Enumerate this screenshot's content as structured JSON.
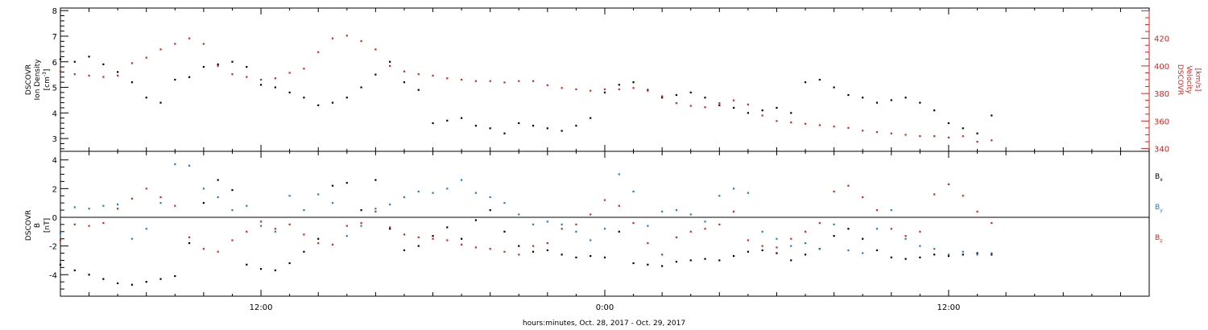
{
  "chart_data": [
    {
      "type": "scatter",
      "panel": "top",
      "ylabel_left": [
        "DSCOVR",
        "Ion Density",
        "[cm",
        "-3",
        "]"
      ],
      "ylabel_right": [
        "DSCOVR",
        "Velocity",
        "[km/s]"
      ],
      "ylim_left": [
        2.5,
        8.1
      ],
      "ylim_right": [
        338,
        442
      ],
      "left_ticks": [
        "3",
        "4",
        "5",
        "6",
        "7",
        "8"
      ],
      "right_ticks": [
        "340",
        "360",
        "380",
        "400",
        "420"
      ],
      "colors": {
        "density": "#000000",
        "velocity": "#e0201c"
      },
      "series": [
        {
          "name": "Ion Density",
          "axis": "left",
          "x": [
            5.0,
            5.5,
            6.0,
            6.5,
            7.0,
            7.5,
            8.0,
            8.5,
            9.0,
            9.5,
            10.0,
            10.5,
            11.0,
            11.5,
            12.0,
            12.5,
            13.0,
            13.5,
            14.0,
            14.5,
            15.0,
            15.5,
            16.0,
            16.5,
            17.0,
            17.5,
            18.0,
            18.5,
            19.0,
            19.5,
            20.0,
            20.5,
            21.0,
            21.5,
            22.0,
            22.5,
            23.0,
            23.5,
            24.0,
            24.5,
            25.0,
            25.5,
            26.0,
            26.5,
            27.0,
            27.5,
            28.0,
            28.5,
            29.0,
            29.5,
            30.0,
            30.5,
            31.0,
            31.5,
            32.0,
            32.5,
            33.0,
            33.5,
            34.0,
            34.5,
            35.0,
            35.5,
            36.0,
            36.5,
            37.0,
            37.5
          ],
          "y": [
            6.1,
            6.0,
            6.2,
            5.9,
            5.6,
            5.2,
            4.6,
            4.4,
            5.3,
            5.4,
            5.8,
            5.9,
            6.0,
            5.8,
            5.1,
            5.0,
            4.8,
            4.6,
            4.3,
            4.4,
            4.6,
            5.0,
            5.5,
            6.0,
            5.2,
            4.9,
            3.6,
            3.7,
            3.8,
            3.5,
            3.4,
            3.2,
            3.6,
            3.5,
            3.4,
            3.3,
            3.5,
            3.8,
            4.8,
            5.1,
            5.2,
            4.9,
            4.6,
            4.7,
            4.8,
            4.6,
            4.3,
            4.2,
            4.0,
            4.1,
            4.2,
            4.0,
            5.2,
            5.3,
            5.0,
            4.7,
            4.6,
            4.4,
            4.5,
            4.6,
            4.4,
            4.1,
            3.6,
            3.4,
            3.2,
            3.9
          ]
        },
        {
          "name": "Velocity",
          "axis": "right",
          "x": [
            5.0,
            5.5,
            6.0,
            6.5,
            7.0,
            7.5,
            8.0,
            8.5,
            9.0,
            9.5,
            10.0,
            10.5,
            11.0,
            11.5,
            12.0,
            12.5,
            13.0,
            13.5,
            14.0,
            14.5,
            15.0,
            15.5,
            16.0,
            16.5,
            17.0,
            17.5,
            18.0,
            18.5,
            19.0,
            19.5,
            20.0,
            20.5,
            21.0,
            21.5,
            22.0,
            22.5,
            23.0,
            23.5,
            24.0,
            24.5,
            25.0,
            25.5,
            26.0,
            26.5,
            27.0,
            27.5,
            28.0,
            28.5,
            29.0,
            29.5,
            30.0,
            30.5,
            31.0,
            31.5,
            32.0,
            32.5,
            33.0,
            33.5,
            34.0,
            34.5,
            35.0,
            35.5,
            36.0,
            36.5,
            37.0,
            37.5
          ],
          "y": [
            396,
            394,
            393,
            392,
            393,
            402,
            406,
            412,
            416,
            420,
            416,
            400,
            394,
            392,
            390,
            391,
            395,
            398,
            410,
            420,
            422,
            418,
            412,
            400,
            396,
            394,
            393,
            391,
            390,
            389,
            389,
            388,
            389,
            389,
            386,
            384,
            383,
            382,
            383,
            383,
            384,
            382,
            378,
            373,
            371,
            370,
            373,
            375,
            372,
            364,
            360,
            359,
            358,
            357,
            356,
            355,
            353,
            352,
            351,
            350,
            349,
            349,
            348,
            349,
            345,
            346
          ]
        }
      ]
    },
    {
      "type": "scatter",
      "panel": "bottom",
      "ylabel_left": [
        "DSCOVR",
        "B",
        "[nT]"
      ],
      "ylim": [
        -5.5,
        4.6
      ],
      "left_ticks": [
        "-4",
        "-2",
        "0",
        "2",
        "4"
      ],
      "legend": [
        {
          "name": "B",
          "sub": "x",
          "color": "#000000"
        },
        {
          "name": "B",
          "sub": "y",
          "color": "#1f7ccf"
        },
        {
          "name": "B",
          "sub": "z",
          "color": "#e0201c"
        }
      ],
      "colors": {
        "bx": "#000000",
        "by": "#1f7ccf",
        "bz": "#e0201c"
      },
      "series": [
        {
          "name": "Bx",
          "x": [
            5.0,
            5.5,
            6.0,
            6.5,
            7.0,
            7.5,
            8.0,
            8.5,
            9.0,
            9.5,
            10.0,
            10.5,
            11.0,
            11.5,
            12.0,
            12.5,
            13.0,
            13.5,
            14.0,
            14.5,
            15.0,
            15.5,
            16.0,
            16.5,
            17.0,
            17.5,
            18.0,
            18.5,
            19.0,
            19.5,
            20.0,
            20.5,
            21.0,
            21.5,
            22.0,
            22.5,
            23.0,
            23.5,
            24.0,
            24.5,
            25.0,
            25.5,
            26.0,
            26.5,
            27.0,
            27.5,
            28.0,
            28.5,
            29.0,
            29.5,
            30.0,
            30.5,
            31.0,
            31.5,
            32.0,
            32.5,
            33.0,
            33.5,
            34.0,
            34.5,
            35.0,
            35.5,
            36.0,
            36.5,
            37.0,
            37.5
          ],
          "y": [
            -3.3,
            -3.7,
            -4.0,
            -4.3,
            -4.6,
            -4.7,
            -4.5,
            -4.3,
            -4.1,
            -1.8,
            1.0,
            2.6,
            1.9,
            -3.3,
            -3.6,
            -3.7,
            -3.2,
            -2.4,
            -1.5,
            2.2,
            2.4,
            0.5,
            2.6,
            -0.8,
            -2.3,
            -2.0,
            -1.3,
            -0.7,
            -1.5,
            -0.2,
            0.5,
            -1.0,
            -2.0,
            -2.4,
            -2.3,
            -2.6,
            -2.8,
            -2.7,
            -2.8,
            -1.0,
            -3.2,
            -3.3,
            -3.4,
            -3.1,
            -3.0,
            -2.9,
            -3.0,
            -2.7,
            -2.4,
            -2.3,
            -2.5,
            -3.0,
            -2.6,
            -2.2,
            -1.3,
            -0.8,
            -1.5,
            -2.3,
            -2.8,
            -2.9,
            -2.8,
            -2.6,
            -2.7,
            -2.6,
            -2.5,
            -2.6
          ]
        },
        {
          "name": "By",
          "x": [
            5.0,
            5.5,
            6.0,
            6.5,
            7.0,
            7.5,
            8.0,
            8.5,
            9.0,
            9.5,
            10.0,
            10.5,
            11.0,
            11.5,
            12.0,
            12.5,
            13.0,
            13.5,
            14.0,
            14.5,
            15.0,
            15.5,
            16.0,
            16.5,
            17.0,
            17.5,
            18.0,
            18.5,
            19.0,
            19.5,
            20.0,
            20.5,
            21.0,
            21.5,
            22.0,
            22.5,
            23.0,
            23.5,
            24.0,
            24.5,
            25.0,
            25.5,
            26.0,
            26.5,
            27.0,
            27.5,
            28.0,
            28.5,
            29.0,
            29.5,
            30.0,
            30.5,
            31.0,
            31.5,
            32.0,
            32.5,
            33.0,
            33.5,
            34.0,
            34.5,
            35.0,
            35.5,
            36.0,
            36.5,
            37.0,
            37.5
          ],
          "y": [
            -1.1,
            0.7,
            0.6,
            0.8,
            0.9,
            -1.5,
            -0.8,
            1.0,
            3.7,
            3.6,
            2.0,
            1.4,
            0.5,
            0.8,
            -0.6,
            -1.0,
            1.5,
            0.5,
            1.6,
            1.0,
            -1.3,
            -0.6,
            0.6,
            0.9,
            1.4,
            1.8,
            1.7,
            2.0,
            2.6,
            1.7,
            1.4,
            1.0,
            0.2,
            -0.5,
            -0.3,
            -0.5,
            -1.0,
            -1.6,
            -0.8,
            3.0,
            1.8,
            -0.6,
            0.4,
            0.5,
            0.2,
            -0.3,
            1.5,
            2.0,
            1.7,
            -1.0,
            -1.5,
            -2.0,
            -1.8,
            -2.2,
            -0.5,
            -2.3,
            -2.5,
            -0.8,
            0.5,
            -1.5,
            -2.0,
            -2.2,
            -2.6,
            -2.4,
            -2.6,
            -2.5
          ]
        },
        {
          "name": "Bz",
          "x": [
            5.0,
            5.5,
            6.0,
            6.5,
            7.0,
            7.5,
            8.0,
            8.5,
            9.0,
            9.5,
            10.0,
            10.5,
            11.0,
            11.5,
            12.0,
            12.5,
            13.0,
            13.5,
            14.0,
            14.5,
            15.0,
            15.5,
            16.0,
            16.5,
            17.0,
            17.5,
            18.0,
            18.5,
            19.0,
            19.5,
            20.0,
            20.5,
            21.0,
            21.5,
            22.0,
            22.5,
            23.0,
            23.5,
            24.0,
            24.5,
            25.0,
            25.5,
            26.0,
            26.5,
            27.0,
            27.5,
            28.0,
            28.5,
            29.0,
            29.5,
            30.0,
            30.5,
            31.0,
            31.5,
            32.0,
            32.5,
            33.0,
            33.5,
            34.0,
            34.5,
            35.0,
            35.5,
            36.0,
            36.5,
            37.0,
            37.5
          ],
          "y": [
            -1.6,
            -0.5,
            -0.6,
            -0.4,
            0.6,
            1.3,
            2.0,
            1.4,
            0.8,
            -1.4,
            -2.2,
            -2.4,
            -1.6,
            -1.0,
            -0.3,
            -0.8,
            -0.5,
            -1.2,
            -1.8,
            -1.9,
            -0.6,
            -0.4,
            0.4,
            -0.7,
            -1.2,
            -1.4,
            -1.5,
            -1.6,
            -1.9,
            -2.1,
            -2.2,
            -2.4,
            -2.6,
            -2.0,
            -1.8,
            -0.8,
            -0.5,
            0.2,
            1.2,
            0.8,
            -0.4,
            -1.8,
            -2.6,
            -1.4,
            -1.0,
            -0.8,
            -0.5,
            0.4,
            -1.6,
            -2.0,
            -2.1,
            -1.5,
            -1.0,
            -0.4,
            1.8,
            2.2,
            1.4,
            0.5,
            -0.8,
            -1.3,
            -1.0,
            1.6,
            2.3,
            1.5,
            0.4,
            -0.4
          ]
        }
      ]
    }
  ],
  "xaxis": {
    "label": "hours:minutes, Oct. 28, 2017 - Oct. 29, 2017",
    "range_hours": [
      5.0,
      43.0
    ],
    "tick_labels": [
      {
        "t": 12,
        "label": "12:00"
      },
      {
        "t": 24,
        "label": "0:00"
      },
      {
        "t": 36,
        "label": "12:00"
      }
    ]
  }
}
